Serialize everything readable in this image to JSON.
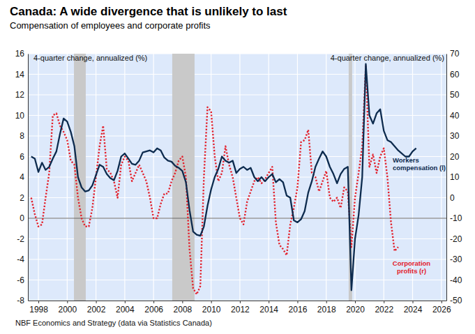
{
  "chart_data": {
    "type": "line",
    "title": "Canada: A wide divergence that is unlikely to last",
    "subtitle": "Compensation of employees and corporate profits",
    "ylabel": "4-quarter change, annualized (%)",
    "y2label": "4-quarter change, annualized (%)",
    "source": "NBF Economics and Strategy (data via Statistics Canada)",
    "x": [
      1997.5,
      1997.75,
      1998,
      1998.25,
      1998.5,
      1998.75,
      1999,
      1999.25,
      1999.5,
      1999.75,
      2000,
      2000.25,
      2000.5,
      2000.75,
      2001,
      2001.25,
      2001.5,
      2001.75,
      2002,
      2002.25,
      2002.5,
      2002.75,
      2003,
      2003.25,
      2003.5,
      2003.75,
      2004,
      2004.25,
      2004.5,
      2004.75,
      2005,
      2005.25,
      2005.5,
      2005.75,
      2006,
      2006.25,
      2006.5,
      2006.75,
      2007,
      2007.25,
      2007.5,
      2007.75,
      2008,
      2008.25,
      2008.5,
      2008.75,
      2009,
      2009.25,
      2009.5,
      2009.75,
      2010,
      2010.25,
      2010.5,
      2010.75,
      2011,
      2011.25,
      2011.5,
      2011.75,
      2012,
      2012.25,
      2012.5,
      2012.75,
      2013,
      2013.25,
      2013.5,
      2013.75,
      2014,
      2014.25,
      2014.5,
      2014.75,
      2015,
      2015.25,
      2015.5,
      2015.75,
      2016,
      2016.25,
      2016.5,
      2016.75,
      2017,
      2017.25,
      2017.5,
      2017.75,
      2018,
      2018.25,
      2018.5,
      2018.75,
      2019,
      2019.25,
      2019.5,
      2019.75,
      2020,
      2020.25,
      2020.5,
      2020.75,
      2021,
      2021.25,
      2021.5,
      2021.75,
      2022,
      2022.25,
      2022.5,
      2022.75,
      2023,
      2023.25,
      2023.5,
      2023.75,
      2024,
      2024.25
    ],
    "series": [
      {
        "name": "Workers compensation (l)",
        "color": "#0d2b4e",
        "line_style": "solid",
        "axis": "y",
        "values": [
          6.0,
          5.8,
          4.5,
          5.4,
          4.7,
          5.0,
          5.8,
          6.5,
          8.2,
          9.7,
          9.4,
          8.4,
          7.0,
          4.0,
          3.0,
          2.6,
          2.7,
          3.2,
          4.2,
          5.2,
          5.0,
          4.3,
          3.9,
          3.7,
          4.6,
          6.0,
          6.3,
          5.8,
          5.3,
          5.2,
          5.6,
          6.4,
          6.5,
          6.6,
          6.4,
          6.8,
          6.6,
          5.9,
          5.6,
          5.5,
          5.1,
          4.9,
          4.6,
          3.5,
          0.8,
          -1.3,
          -1.6,
          -1.7,
          -0.8,
          1.2,
          2.8,
          4.0,
          4.8,
          6.0,
          5.6,
          5.4,
          5.6,
          4.4,
          4.8,
          5.0,
          4.7,
          4.9,
          4.0,
          3.6,
          4.0,
          3.6,
          4.0,
          4.3,
          3.5,
          3.8,
          3.5,
          2.2,
          2.0,
          -0.2,
          -0.4,
          -0.1,
          0.7,
          2.5,
          3.6,
          5.0,
          5.8,
          6.5,
          6.0,
          5.0,
          4.3,
          3.4,
          4.3,
          4.8,
          5.0,
          -7.0,
          -2.0,
          0.3,
          4.0,
          15.0,
          10.0,
          9.2,
          10.2,
          10.6,
          8.5,
          7.6,
          7.4,
          7.0,
          6.6,
          6.3,
          6.0,
          6.0,
          6.5,
          6.8
        ]
      },
      {
        "name": "Corporation profits (r)",
        "color": "#e3202b",
        "line_style": "dotted",
        "axis": "y2",
        "values": [
          0,
          -8,
          -14,
          -13,
          0,
          12,
          40,
          41,
          35,
          32,
          28,
          18,
          16,
          0,
          -10,
          -14,
          -14,
          -5,
          10,
          25,
          35,
          14,
          12,
          8,
          0,
          16,
          20,
          18,
          8,
          12,
          16,
          12,
          8,
          0,
          -10,
          -10,
          -3,
          2,
          2,
          8,
          12,
          18,
          20,
          10,
          -25,
          -44,
          -47,
          -43,
          10,
          44,
          42,
          20,
          8,
          12,
          25,
          16,
          10,
          0,
          -10,
          -13,
          -2,
          3,
          8,
          10,
          7,
          9,
          12,
          15,
          -12,
          -23,
          -25,
          -28,
          -13,
          -5,
          5,
          27,
          28,
          33,
          12,
          10,
          3,
          8,
          13,
          0,
          -2,
          0,
          -5,
          5,
          3,
          -24,
          0,
          12,
          25,
          64,
          15,
          21,
          12,
          20,
          24,
          10,
          -12,
          -26,
          -24,
          null,
          null,
          null,
          null,
          null
        ]
      }
    ],
    "shaded_periods": [
      [
        2000.47,
        2001.29
      ],
      [
        2007.3,
        2008.85
      ],
      [
        2019.56,
        2019.8
      ]
    ],
    "xlim": [
      1997.27,
      2026.35
    ],
    "xticks": [
      1998,
      2000,
      2002,
      2004,
      2006,
      2008,
      2010,
      2012,
      2014,
      2016,
      2018,
      2020,
      2022,
      2024,
      2026
    ],
    "ylim": [
      -8,
      16
    ],
    "yticks": [
      -8,
      -6,
      -4,
      -2,
      0,
      2,
      4,
      6,
      8,
      10,
      12,
      14,
      16
    ],
    "y2lim": [
      -50,
      70
    ],
    "y2ticks": [
      -50,
      -40,
      -30,
      -20,
      -10,
      0,
      10,
      20,
      30,
      40,
      50,
      60,
      70
    ],
    "grid": true
  }
}
